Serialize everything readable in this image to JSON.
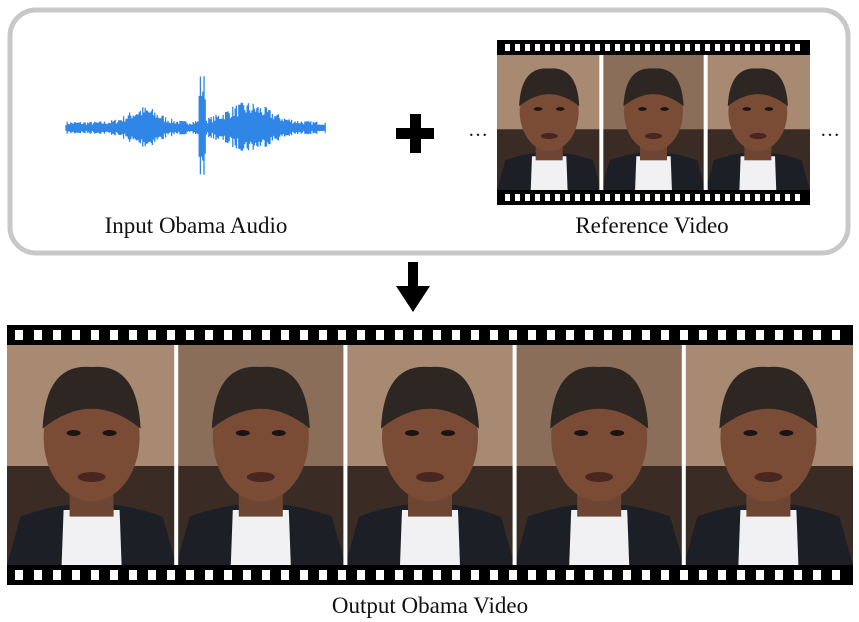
{
  "input": {
    "label": "Input Obama Audio"
  },
  "reference": {
    "label": "Reference Video",
    "ellipsis_left": "…",
    "ellipsis_right": "…"
  },
  "output": {
    "label": "Output Obama Video"
  }
}
